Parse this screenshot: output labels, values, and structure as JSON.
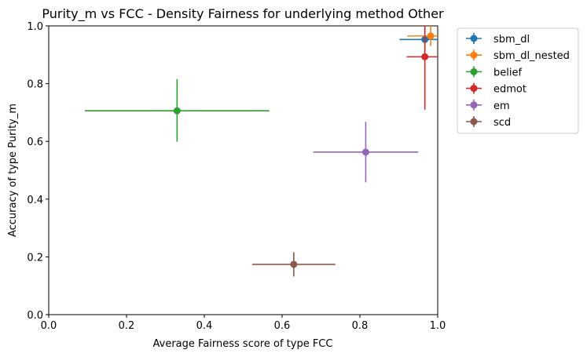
{
  "chart_data": {
    "type": "scatter",
    "title": "Purity_m vs FCC - Density Fairness for underlying method Other",
    "xlabel": "Average Fairness score of type FCC",
    "ylabel": "Accuracy of type Purity_m",
    "xlim": [
      0.0,
      1.0
    ],
    "ylim": [
      0.0,
      1.0
    ],
    "xticks": [
      "0.0",
      "0.2",
      "0.4",
      "0.6",
      "0.8",
      "1.0"
    ],
    "yticks": [
      "0.0",
      "0.2",
      "0.4",
      "0.6",
      "0.8",
      "1.0"
    ],
    "grid": false,
    "legend_position": "outside-top-right",
    "series": [
      {
        "name": "sbm_dl",
        "color": "#1f77b4",
        "x": 0.967,
        "y": 0.953,
        "xerr": [
          0.065,
          0.033
        ],
        "yerr": [
          0.047,
          0.047
        ]
      },
      {
        "name": "sbm_dl_nested",
        "color": "#ff7f0e",
        "x": 0.982,
        "y": 0.965,
        "xerr": [
          0.06,
          0.018
        ],
        "yerr": [
          0.035,
          0.035
        ]
      },
      {
        "name": "belief",
        "color": "#2ca02c",
        "x": 0.33,
        "y": 0.706,
        "xerr": [
          0.237,
          0.237
        ],
        "yerr": [
          0.107,
          0.11
        ]
      },
      {
        "name": "edmot",
        "color": "#d62728",
        "x": 0.967,
        "y": 0.893,
        "xerr": [
          0.047,
          0.033
        ],
        "yerr": [
          0.183,
          0.107
        ]
      },
      {
        "name": "em",
        "color": "#9467bd",
        "x": 0.815,
        "y": 0.563,
        "xerr": [
          0.135,
          0.135
        ],
        "yerr": [
          0.105,
          0.105
        ]
      },
      {
        "name": "scd",
        "color": "#8c564b",
        "x": 0.63,
        "y": 0.174,
        "xerr": [
          0.107,
          0.107
        ],
        "yerr": [
          0.042,
          0.042
        ]
      }
    ]
  }
}
